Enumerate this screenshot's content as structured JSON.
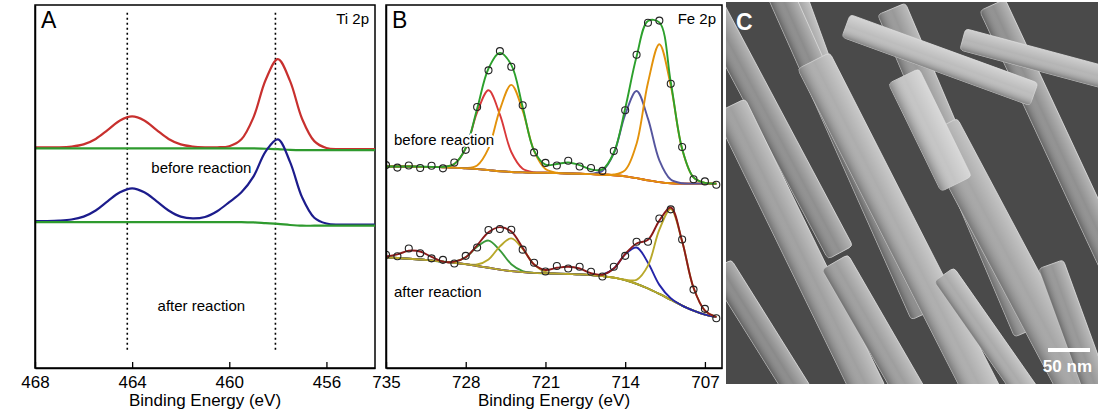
{
  "chart_data": [
    {
      "type": "line",
      "panel": "A",
      "title": "Ti 2p",
      "x_label": "Binding Energy (eV)",
      "xlim": [
        468,
        454
      ],
      "xticks": [
        468,
        464,
        460,
        456
      ],
      "ylim": [
        0,
        100
      ],
      "yticks": [],
      "tick_labels": "x",
      "reference_lines": [
        464.2,
        458.1
      ],
      "x": [
        468,
        467.5,
        467,
        466.5,
        466,
        465.5,
        465,
        464.5,
        464,
        463.5,
        463,
        462.5,
        462,
        461.5,
        461,
        460.5,
        460,
        459.5,
        459,
        458.5,
        458,
        457.5,
        457,
        456.5,
        456,
        455.5,
        455,
        454.5,
        454
      ],
      "series": [
        {
          "name": "before reaction",
          "type": "line",
          "color": "#c8302e",
          "values": [
            60.8,
            60.8,
            60.8,
            61.0,
            61.6,
            63.1,
            65.6,
            68.2,
            69.3,
            68.2,
            65.6,
            63.1,
            61.6,
            61.0,
            60.8,
            60.8,
            61.1,
            63.0,
            69.1,
            79.4,
            85.1,
            79.1,
            68.6,
            62.5,
            60.6,
            60.3,
            60.3,
            60.3,
            60.3
          ]
        },
        {
          "type": "line",
          "color": "#2e9a2e",
          "values": [
            60.5,
            60.5,
            60.5,
            60.5,
            60.5,
            60.5,
            60.5,
            60.5,
            60.5,
            60.5,
            60.5,
            60.5,
            60.5,
            60.5,
            60.5,
            60.5,
            60.5,
            60.5,
            60.5,
            60.4,
            60.3,
            60.1,
            60.0,
            60.0,
            60.0,
            60.0,
            60.0,
            60.0,
            60.0
          ]
        },
        {
          "name": "after reaction",
          "type": "line",
          "color": "#1c1c8c",
          "values": [
            40.5,
            40.5,
            40.6,
            40.9,
            41.7,
            43.4,
            46.0,
            48.4,
            49.5,
            48.4,
            46.0,
            43.4,
            41.7,
            41.2,
            41.6,
            43.2,
            45.7,
            48.4,
            52.8,
            59.7,
            63.0,
            56.8,
            47.0,
            41.4,
            39.8,
            39.5,
            39.5,
            39.5,
            39.5
          ]
        },
        {
          "type": "line",
          "color": "#2e9a2e",
          "values": [
            40.2,
            40.2,
            40.2,
            40.2,
            40.2,
            40.2,
            40.2,
            40.2,
            40.2,
            40.2,
            40.2,
            40.2,
            40.2,
            40.2,
            40.2,
            40.2,
            40.2,
            40.2,
            40.1,
            39.9,
            39.7,
            39.4,
            39.2,
            39.2,
            39.2,
            39.2,
            39.2,
            39.2,
            39.2
          ]
        }
      ]
    },
    {
      "type": "line",
      "panel": "B",
      "title": "Fe 2p",
      "x_label": "Binding Energy (eV)",
      "xlim": [
        735,
        705.5
      ],
      "xticks": [
        735,
        728,
        721,
        714,
        707
      ],
      "ylim": [
        0,
        100
      ],
      "yticks": [],
      "tick_labels": "x",
      "x": [
        735,
        734,
        733,
        732,
        731,
        730,
        729,
        728,
        727,
        726,
        725,
        724,
        723,
        722,
        721,
        720,
        719,
        718,
        717,
        716,
        715,
        714,
        713,
        712,
        711,
        710,
        709,
        708,
        707,
        706
      ],
      "series": [
        {
          "type": "line",
          "color": "#8b1a1a",
          "values": [
            55.5,
            55.5,
            55.5,
            55.4,
            55.4,
            55.3,
            55.2,
            55.0,
            54.8,
            54.5,
            54.2,
            54.0,
            53.9,
            53.8,
            53.8,
            53.7,
            53.6,
            53.5,
            53.4,
            53.3,
            53.1,
            52.8,
            52.3,
            51.7,
            51.2,
            50.9,
            50.8,
            50.8,
            50.8,
            50.8
          ]
        },
        {
          "type": "line",
          "color": "#d9383a",
          "values": [
            55.5,
            55.5,
            55.5,
            55.4,
            55.4,
            55.4,
            56.2,
            60.5,
            70.4,
            76.5,
            69.8,
            59.5,
            54.9,
            53.9,
            53.8,
            53.7,
            53.6,
            53.5,
            53.4,
            53.3,
            53.1,
            52.8,
            52.3,
            51.7,
            51.2,
            50.9,
            50.8,
            50.8,
            50.8,
            50.8
          ]
        },
        {
          "type": "line",
          "color": "#e3920b",
          "values": [
            55.5,
            55.5,
            55.5,
            55.4,
            55.4,
            55.3,
            55.2,
            55.1,
            55.8,
            60.5,
            71.2,
            78.0,
            70.9,
            59.8,
            54.8,
            53.8,
            53.6,
            53.5,
            53.4,
            53.3,
            53.1,
            52.8,
            52.3,
            51.7,
            51.2,
            50.9,
            50.8,
            50.8,
            50.8,
            50.8
          ]
        },
        {
          "type": "line",
          "color": "#55559e",
          "values": [
            55.5,
            55.5,
            55.5,
            55.4,
            55.4,
            55.3,
            55.2,
            55.0,
            54.8,
            54.5,
            54.2,
            54.0,
            53.9,
            53.8,
            53.8,
            53.7,
            53.6,
            53.5,
            53.5,
            54.3,
            59.1,
            69.8,
            76.3,
            68.7,
            57.2,
            51.9,
            50.9,
            50.8,
            50.8,
            50.8
          ]
        },
        {
          "type": "line",
          "color": "#e3920b",
          "values": [
            55.5,
            55.5,
            55.5,
            55.4,
            55.4,
            55.3,
            55.2,
            55.0,
            54.8,
            54.5,
            54.2,
            54.0,
            53.9,
            53.8,
            53.8,
            53.7,
            53.6,
            53.5,
            53.4,
            53.3,
            53.3,
            54.5,
            61.8,
            78.6,
            89.2,
            77.8,
            60.3,
            52.5,
            51.0,
            50.8
          ]
        },
        {
          "name": "before reaction",
          "type": "line",
          "color": "#2ca02c",
          "values": [
            55.5,
            55.5,
            55.5,
            55.5,
            55.4,
            55.4,
            56.2,
            60.6,
            71.4,
            82.5,
            86.8,
            83.5,
            71.9,
            59.9,
            56.0,
            56.2,
            56.6,
            55.9,
            54.7,
            54.7,
            59.3,
            71.5,
            85.8,
            95.6,
            95.2,
            78.8,
            60.4,
            52.5,
            51.0,
            50.8
          ]
        },
        {
          "type": "scatter",
          "marker": "circle",
          "color": "#222222",
          "values": [
            55.9,
            55.2,
            55.8,
            55.1,
            55.7,
            55.0,
            56.6,
            60.1,
            71.9,
            82.0,
            87.3,
            83.0,
            72.4,
            59.4,
            56.5,
            55.8,
            57.1,
            55.5,
            55.1,
            54.3,
            59.8,
            71.0,
            86.3,
            95.1,
            95.7,
            78.3,
            60.9,
            52.0,
            51.4,
            50.5
          ]
        },
        {
          "type": "line",
          "color": "#8b1a1a",
          "values": [
            30.5,
            30.3,
            30.1,
            29.9,
            29.6,
            29.3,
            29.0,
            28.6,
            28.1,
            27.6,
            27.1,
            26.7,
            26.4,
            26.2,
            26.1,
            26.0,
            25.9,
            25.8,
            25.6,
            25.3,
            24.9,
            24.2,
            23.2,
            21.9,
            20.4,
            18.8,
            17.2,
            15.8,
            14.7,
            14.0
          ]
        },
        {
          "type": "line",
          "color": "#3a9a3a",
          "values": [
            30.5,
            30.3,
            30.1,
            29.9,
            29.6,
            29.3,
            29.3,
            30.5,
            33.4,
            35.1,
            32.4,
            28.6,
            26.7,
            26.2,
            26.1,
            26.0,
            25.9,
            25.8,
            25.6,
            25.3,
            24.9,
            24.2,
            23.2,
            21.9,
            20.4,
            18.8,
            17.2,
            15.8,
            14.7,
            14.0
          ]
        },
        {
          "type": "line",
          "color": "#b8a82a",
          "values": [
            30.5,
            30.3,
            30.1,
            29.9,
            29.6,
            29.3,
            29.0,
            28.6,
            28.5,
            29.9,
            33.5,
            35.7,
            32.8,
            28.5,
            26.5,
            26.0,
            25.9,
            25.8,
            25.6,
            25.3,
            24.9,
            24.2,
            23.2,
            21.9,
            20.4,
            18.8,
            17.2,
            15.8,
            14.7,
            14.0
          ]
        },
        {
          "type": "line",
          "color": "#2424a8",
          "values": [
            30.5,
            30.3,
            30.1,
            29.9,
            29.6,
            29.3,
            29.0,
            28.6,
            28.1,
            27.6,
            27.1,
            26.7,
            26.4,
            26.2,
            26.1,
            26.0,
            25.9,
            25.8,
            25.6,
            25.7,
            27.4,
            31.3,
            33.2,
            29.0,
            22.9,
            19.2,
            17.2,
            15.8,
            14.7,
            14.0
          ]
        },
        {
          "type": "line",
          "color": "#b8a82a",
          "values": [
            30.5,
            30.3,
            30.1,
            29.9,
            29.6,
            29.3,
            29.0,
            28.6,
            28.1,
            27.6,
            27.1,
            26.7,
            26.4,
            26.2,
            26.1,
            26.0,
            25.9,
            25.8,
            25.6,
            25.3,
            24.9,
            24.3,
            24.3,
            28.2,
            38.1,
            43.8,
            34.9,
            22.1,
            15.8,
            14.1
          ]
        },
        {
          "name": "after reaction",
          "type": "line",
          "color": "#8b1a1a",
          "values": [
            30.7,
            31.3,
            32.3,
            32.1,
            30.6,
            29.3,
            29.3,
            30.5,
            33.8,
            37.4,
            38.8,
            37.6,
            33.1,
            28.5,
            27.0,
            27.6,
            27.9,
            27.4,
            26.1,
            25.7,
            27.4,
            31.4,
            34.3,
            35.3,
            40.6,
            44.2,
            34.9,
            22.1,
            15.8,
            14.1
          ]
        },
        {
          "type": "scatter",
          "marker": "circle",
          "color": "#222222",
          "values": [
            31.2,
            30.8,
            32.9,
            31.6,
            30.2,
            29.8,
            28.8,
            30.9,
            33.2,
            38.0,
            38.3,
            38.1,
            32.6,
            29.0,
            26.6,
            28.1,
            27.4,
            27.9,
            26.5,
            25.2,
            27.9,
            30.9,
            34.8,
            34.8,
            41.2,
            43.7,
            35.4,
            21.6,
            16.3,
            13.7
          ]
        }
      ]
    }
  ],
  "image_panel": {
    "letter": "C",
    "scale_bar_label": "50 nm"
  }
}
